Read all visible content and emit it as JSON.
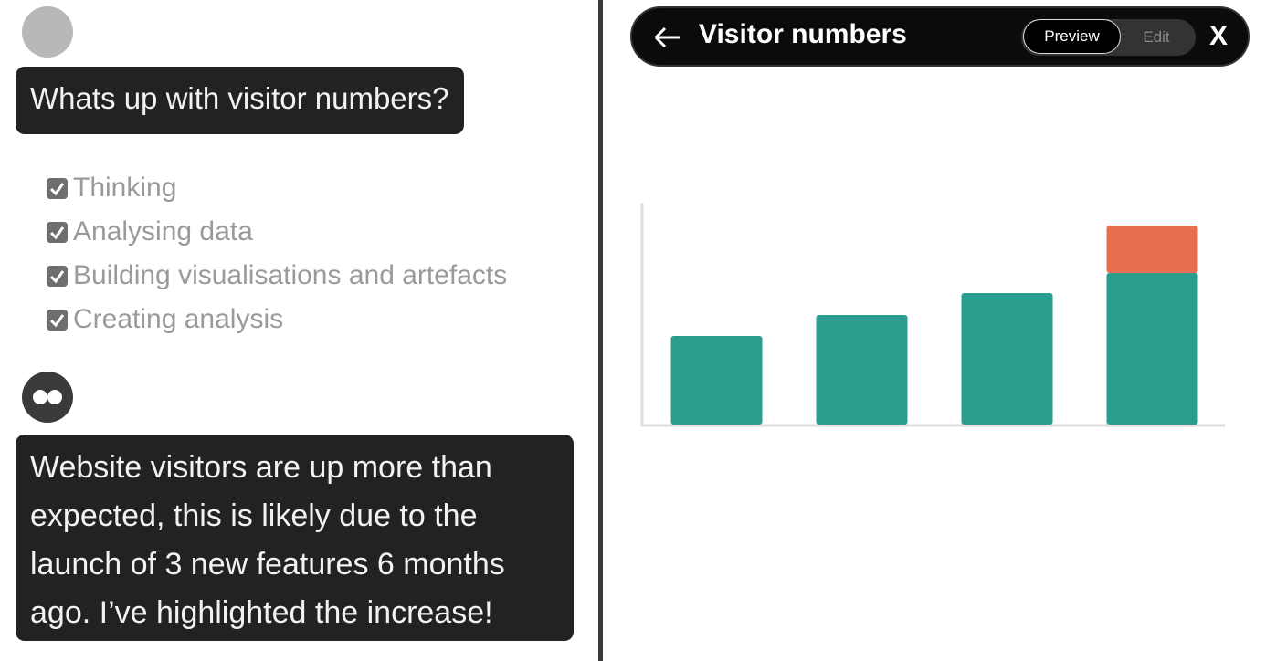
{
  "sidebar": {
    "user_message": "Whats up with visitor numbers?",
    "steps": [
      "Thinking",
      "Analysing data",
      "Building visualisations and artefacts",
      "Creating analysis"
    ],
    "response": "Website visitors are up more than expected, this is likely due to the launch of 3 new features 6 months ago. I’ve highlighted the increase!"
  },
  "panel": {
    "title": "Visitor numbers",
    "tabs": [
      "Preview",
      "Edit"
    ],
    "close": "X"
  },
  "chart_data": {
    "type": "bar",
    "stacked": true,
    "categories": [
      null,
      null,
      null,
      null
    ],
    "series": [
      {
        "color": "#2a9d8f",
        "values": [
          97,
          120,
          144,
          166
        ]
      },
      {
        "color": "#e76f51",
        "values": [
          null,
          null,
          null,
          52
        ]
      }
    ],
    "ylim": [
      0,
      243
    ]
  }
}
